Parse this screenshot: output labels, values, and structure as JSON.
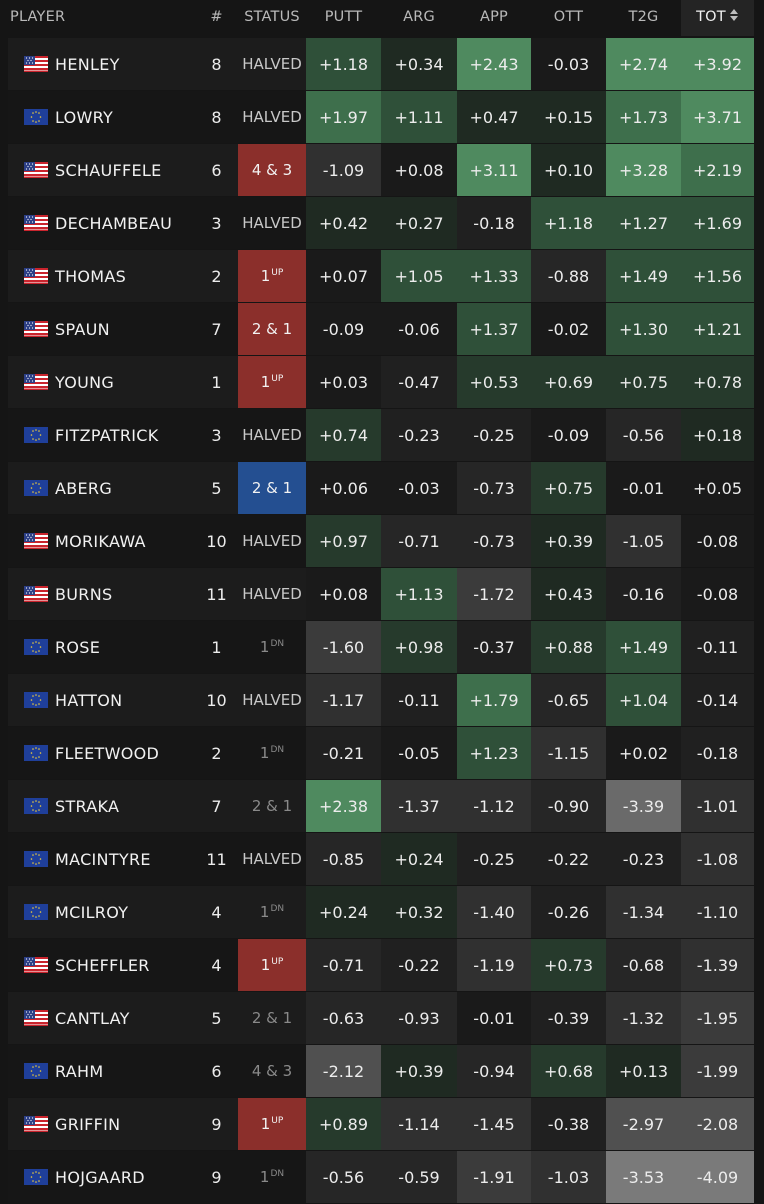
{
  "header": {
    "player": "PLAYER",
    "number": "#",
    "status": "STATUS",
    "putt": "PUTT",
    "arg": "ARG",
    "app": "APP",
    "ott": "OTT",
    "t2g": "T2G",
    "tot": "TOT"
  },
  "colors": {
    "background": "#151515",
    "usa_win": "#8b2f2b",
    "eur_win": "#244f91"
  },
  "rows": [
    {
      "name": "HENLEY",
      "team": "usa",
      "flag": "us-flag-icon",
      "num": "8",
      "status": "HALVED",
      "status_sup": "",
      "status_kind": "halved",
      "putt": "+1.18",
      "arg": "+0.34",
      "app": "+2.43",
      "ott": "-0.03",
      "t2g": "+2.74",
      "tot": "+3.92"
    },
    {
      "name": "LOWRY",
      "team": "eur",
      "flag": "eu-flag-icon",
      "num": "8",
      "status": "HALVED",
      "status_sup": "",
      "status_kind": "halved",
      "putt": "+1.97",
      "arg": "+1.11",
      "app": "+0.47",
      "ott": "+0.15",
      "t2g": "+1.73",
      "tot": "+3.71"
    },
    {
      "name": "SCHAUFFELE",
      "team": "usa",
      "flag": "us-flag-icon",
      "num": "6",
      "status": "4 & 3",
      "status_sup": "",
      "status_kind": "win-usa",
      "putt": "-1.09",
      "arg": "+0.08",
      "app": "+3.11",
      "ott": "+0.10",
      "t2g": "+3.28",
      "tot": "+2.19"
    },
    {
      "name": "DECHAMBEAU",
      "team": "usa",
      "flag": "us-flag-icon",
      "num": "3",
      "status": "HALVED",
      "status_sup": "",
      "status_kind": "halved",
      "putt": "+0.42",
      "arg": "+0.27",
      "app": "-0.18",
      "ott": "+1.18",
      "t2g": "+1.27",
      "tot": "+1.69"
    },
    {
      "name": "THOMAS",
      "team": "usa",
      "flag": "us-flag-icon",
      "num": "2",
      "status": "1",
      "status_sup": "UP",
      "status_kind": "win-usa",
      "putt": "+0.07",
      "arg": "+1.05",
      "app": "+1.33",
      "ott": "-0.88",
      "t2g": "+1.49",
      "tot": "+1.56"
    },
    {
      "name": "SPAUN",
      "team": "usa",
      "flag": "us-flag-icon",
      "num": "7",
      "status": "2 & 1",
      "status_sup": "",
      "status_kind": "win-usa",
      "putt": "-0.09",
      "arg": "-0.06",
      "app": "+1.37",
      "ott": "-0.02",
      "t2g": "+1.30",
      "tot": "+1.21"
    },
    {
      "name": "YOUNG",
      "team": "usa",
      "flag": "us-flag-icon",
      "num": "1",
      "status": "1",
      "status_sup": "UP",
      "status_kind": "win-usa",
      "putt": "+0.03",
      "arg": "-0.47",
      "app": "+0.53",
      "ott": "+0.69",
      "t2g": "+0.75",
      "tot": "+0.78"
    },
    {
      "name": "FITZPATRICK",
      "team": "eur",
      "flag": "eu-flag-icon",
      "num": "3",
      "status": "HALVED",
      "status_sup": "",
      "status_kind": "halved",
      "putt": "+0.74",
      "arg": "-0.23",
      "app": "-0.25",
      "ott": "-0.09",
      "t2g": "-0.56",
      "tot": "+0.18"
    },
    {
      "name": "ABERG",
      "team": "eur",
      "flag": "eu-flag-icon",
      "num": "5",
      "status": "2 & 1",
      "status_sup": "",
      "status_kind": "win-eur",
      "putt": "+0.06",
      "arg": "-0.03",
      "app": "-0.73",
      "ott": "+0.75",
      "t2g": "-0.01",
      "tot": "+0.05"
    },
    {
      "name": "MORIKAWA",
      "team": "usa",
      "flag": "us-flag-icon",
      "num": "10",
      "status": "HALVED",
      "status_sup": "",
      "status_kind": "halved",
      "putt": "+0.97",
      "arg": "-0.71",
      "app": "-0.73",
      "ott": "+0.39",
      "t2g": "-1.05",
      "tot": "-0.08"
    },
    {
      "name": "BURNS",
      "team": "usa",
      "flag": "us-flag-icon",
      "num": "11",
      "status": "HALVED",
      "status_sup": "",
      "status_kind": "halved",
      "putt": "+0.08",
      "arg": "+1.13",
      "app": "-1.72",
      "ott": "+0.43",
      "t2g": "-0.16",
      "tot": "-0.08"
    },
    {
      "name": "ROSE",
      "team": "eur",
      "flag": "eu-flag-icon",
      "num": "1",
      "status": "1",
      "status_sup": "DN",
      "status_kind": "loss",
      "putt": "-1.60",
      "arg": "+0.98",
      "app": "-0.37",
      "ott": "+0.88",
      "t2g": "+1.49",
      "tot": "-0.11"
    },
    {
      "name": "HATTON",
      "team": "eur",
      "flag": "eu-flag-icon",
      "num": "10",
      "status": "HALVED",
      "status_sup": "",
      "status_kind": "halved",
      "putt": "-1.17",
      "arg": "-0.11",
      "app": "+1.79",
      "ott": "-0.65",
      "t2g": "+1.04",
      "tot": "-0.14"
    },
    {
      "name": "FLEETWOOD",
      "team": "eur",
      "flag": "eu-flag-icon",
      "num": "2",
      "status": "1",
      "status_sup": "DN",
      "status_kind": "loss",
      "putt": "-0.21",
      "arg": "-0.05",
      "app": "+1.23",
      "ott": "-1.15",
      "t2g": "+0.02",
      "tot": "-0.18"
    },
    {
      "name": "STRAKA",
      "team": "eur",
      "flag": "eu-flag-icon",
      "num": "7",
      "status": "2 & 1",
      "status_sup": "",
      "status_kind": "loss",
      "putt": "+2.38",
      "arg": "-1.37",
      "app": "-1.12",
      "ott": "-0.90",
      "t2g": "-3.39",
      "tot": "-1.01"
    },
    {
      "name": "MACINTYRE",
      "team": "eur",
      "flag": "eu-flag-icon",
      "num": "11",
      "status": "HALVED",
      "status_sup": "",
      "status_kind": "halved",
      "putt": "-0.85",
      "arg": "+0.24",
      "app": "-0.25",
      "ott": "-0.22",
      "t2g": "-0.23",
      "tot": "-1.08"
    },
    {
      "name": "MCILROY",
      "team": "eur",
      "flag": "eu-flag-icon",
      "num": "4",
      "status": "1",
      "status_sup": "DN",
      "status_kind": "loss",
      "putt": "+0.24",
      "arg": "+0.32",
      "app": "-1.40",
      "ott": "-0.26",
      "t2g": "-1.34",
      "tot": "-1.10"
    },
    {
      "name": "SCHEFFLER",
      "team": "usa",
      "flag": "us-flag-icon",
      "num": "4",
      "status": "1",
      "status_sup": "UP",
      "status_kind": "win-usa",
      "putt": "-0.71",
      "arg": "-0.22",
      "app": "-1.19",
      "ott": "+0.73",
      "t2g": "-0.68",
      "tot": "-1.39"
    },
    {
      "name": "CANTLAY",
      "team": "usa",
      "flag": "us-flag-icon",
      "num": "5",
      "status": "2 & 1",
      "status_sup": "",
      "status_kind": "loss",
      "putt": "-0.63",
      "arg": "-0.93",
      "app": "-0.01",
      "ott": "-0.39",
      "t2g": "-1.32",
      "tot": "-1.95"
    },
    {
      "name": "RAHM",
      "team": "eur",
      "flag": "eu-flag-icon",
      "num": "6",
      "status": "4 & 3",
      "status_sup": "",
      "status_kind": "loss",
      "putt": "-2.12",
      "arg": "+0.39",
      "app": "-0.94",
      "ott": "+0.68",
      "t2g": "+0.13",
      "tot": "-1.99"
    },
    {
      "name": "GRIFFIN",
      "team": "usa",
      "flag": "us-flag-icon",
      "num": "9",
      "status": "1",
      "status_sup": "UP",
      "status_kind": "win-usa",
      "putt": "+0.89",
      "arg": "-1.14",
      "app": "-1.45",
      "ott": "-0.38",
      "t2g": "-2.97",
      "tot": "-2.08"
    },
    {
      "name": "HOJGAARD",
      "team": "eur",
      "flag": "eu-flag-icon",
      "num": "9",
      "status": "1",
      "status_sup": "DN",
      "status_kind": "loss",
      "putt": "-0.56",
      "arg": "-0.59",
      "app": "-1.91",
      "ott": "-1.03",
      "t2g": "-3.53",
      "tot": "-4.09"
    }
  ]
}
